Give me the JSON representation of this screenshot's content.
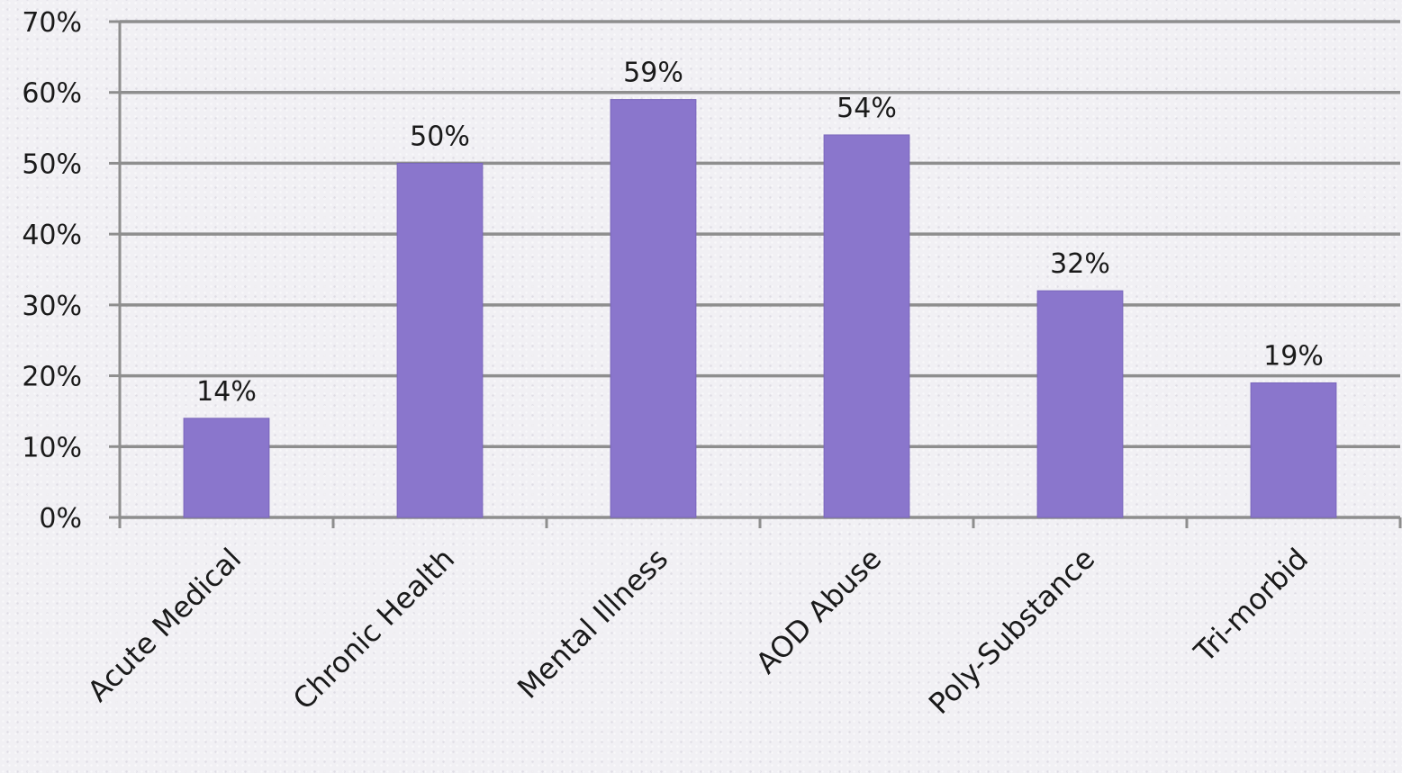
{
  "chart_data": {
    "type": "bar",
    "categories": [
      "Acute Medical",
      "Chronic Health",
      "Mental Illness",
      "AOD Abuse",
      "Poly-Substance",
      "Tri-morbid"
    ],
    "values": [
      14,
      50,
      59,
      54,
      32,
      19
    ],
    "data_labels": [
      "14%",
      "50%",
      "59%",
      "54%",
      "32%",
      "19%"
    ],
    "y_ticks": [
      "0%",
      "10%",
      "20%",
      "30%",
      "40%",
      "50%",
      "60%",
      "70%"
    ],
    "ylim": [
      0,
      70
    ],
    "y_unit": "%",
    "grid": true,
    "legend": "none",
    "title": "",
    "xlabel": "",
    "ylabel": "",
    "colors": {
      "bar": "#8a76cc",
      "grid": "#8e8e8e",
      "background": "#f1f0f4"
    }
  }
}
